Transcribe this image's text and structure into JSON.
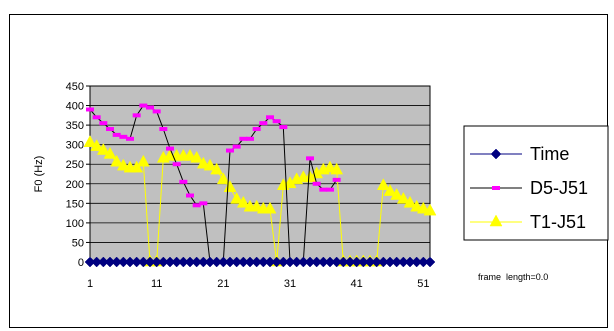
{
  "chart_data": {
    "type": "line",
    "title": "",
    "xlabel": "",
    "ylabel": "F0 (Hz)",
    "ylim": [
      0,
      450
    ],
    "yticks": [
      0,
      50,
      100,
      150,
      200,
      250,
      300,
      350,
      400,
      450
    ],
    "xlim": [
      1,
      52
    ],
    "xticks": [
      1,
      11,
      21,
      31,
      41,
      51
    ],
    "grid": true,
    "legend": "right",
    "plot_background": "#c0c0c0",
    "series": [
      {
        "name": "Time",
        "color": "#000080",
        "marker": "diamond",
        "x": [
          1,
          2,
          3,
          4,
          5,
          6,
          7,
          8,
          9,
          10,
          11,
          12,
          13,
          14,
          15,
          16,
          17,
          18,
          19,
          20,
          21,
          22,
          23,
          24,
          25,
          26,
          27,
          28,
          29,
          30,
          31,
          32,
          33,
          34,
          35,
          36,
          37,
          38,
          39,
          40,
          41,
          42,
          43,
          44,
          45,
          46,
          47,
          48,
          49,
          50,
          51,
          52
        ],
        "y": [
          0,
          0,
          0,
          0,
          0,
          0,
          0,
          0,
          0,
          0,
          0,
          0,
          0,
          0,
          0,
          0,
          0,
          0,
          0,
          0,
          0,
          0,
          0,
          0,
          0,
          0,
          0,
          0,
          0,
          0,
          0,
          0,
          0,
          0,
          0,
          0,
          0,
          0,
          0,
          0,
          0,
          0,
          0,
          0,
          0,
          0,
          0,
          0,
          0,
          0,
          0,
          0
        ]
      },
      {
        "name": "D5-J51",
        "color": "#ff00ff",
        "marker": "dash",
        "x": [
          1,
          2,
          3,
          4,
          5,
          6,
          7,
          8,
          9,
          10,
          11,
          12,
          13,
          14,
          15,
          16,
          17,
          18,
          19,
          20,
          21,
          22,
          23,
          24,
          25,
          26,
          27,
          28,
          29,
          30,
          31,
          32,
          33,
          34,
          35,
          36,
          37,
          38
        ],
        "y": [
          390,
          370,
          355,
          340,
          325,
          320,
          315,
          375,
          400,
          395,
          385,
          340,
          290,
          250,
          205,
          170,
          145,
          150,
          0,
          0,
          0,
          285,
          295,
          315,
          315,
          340,
          355,
          370,
          360,
          345,
          0,
          0,
          0,
          265,
          200,
          185,
          185,
          210
        ]
      },
      {
        "name": "T1-J51",
        "color": "#ffff00",
        "marker": "triangle",
        "x": [
          1,
          2,
          3,
          4,
          5,
          6,
          7,
          8,
          9,
          10,
          11,
          12,
          13,
          14,
          15,
          16,
          17,
          18,
          19,
          20,
          21,
          22,
          23,
          24,
          25,
          26,
          27,
          28,
          29,
          30,
          31,
          32,
          33,
          34,
          35,
          36,
          37,
          38,
          39,
          40,
          41,
          42,
          43,
          44,
          45,
          46,
          47,
          48,
          49,
          50,
          51,
          52
        ],
        "y": [
          305,
          295,
          285,
          275,
          255,
          245,
          240,
          240,
          255,
          0,
          0,
          265,
          270,
          270,
          270,
          270,
          265,
          250,
          245,
          235,
          210,
          190,
          160,
          150,
          140,
          140,
          135,
          135,
          0,
          195,
          200,
          210,
          215,
          215,
          225,
          235,
          240,
          235,
          0,
          0,
          0,
          0,
          0,
          0,
          195,
          180,
          170,
          160,
          150,
          140,
          135,
          130
        ]
      }
    ],
    "annotation": "frame  length=0.0"
  }
}
